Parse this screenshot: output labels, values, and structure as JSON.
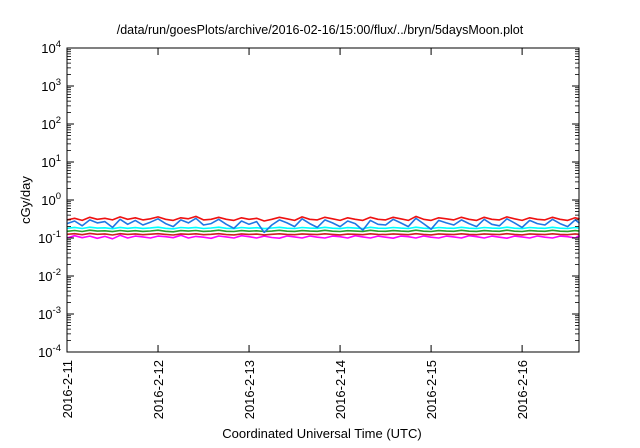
{
  "chart_data": {
    "type": "line",
    "title": "/data/run/goesPlots/archive/2016-02-16/15:00/flux/../bryn/5daysMoon.plot",
    "xlabel": "Coordinated Universal Time (UTC)",
    "ylabel": "cGy/day",
    "y_scale": "log",
    "ylim": [
      0.0001,
      10000
    ],
    "xlim": [
      "2016-02-11 00:00",
      "2016-02-16 15:00"
    ],
    "x_ticks": [
      "2016-2-11",
      "2016-2-12",
      "2016-2-13",
      "2016-2-14",
      "2016-2-15",
      "2016-2-16"
    ],
    "y_ticks": [
      {
        "value": 0.0001,
        "base": "10",
        "exp": "-4"
      },
      {
        "value": 0.001,
        "base": "10",
        "exp": "-3"
      },
      {
        "value": 0.01,
        "base": "10",
        "exp": "-2"
      },
      {
        "value": 0.1,
        "base": "10",
        "exp": "-1"
      },
      {
        "value": 1,
        "base": "10",
        "exp": "0"
      },
      {
        "value": 10,
        "base": "10",
        "exp": "1"
      },
      {
        "value": 100,
        "base": "10",
        "exp": "2"
      },
      {
        "value": 1000,
        "base": "10",
        "exp": "3"
      },
      {
        "value": 10000,
        "base": "10",
        "exp": "4"
      }
    ],
    "grid": false,
    "x_step_hours": 2,
    "series": [
      {
        "color": "#ff00ff",
        "values": [
          0.1,
          0.115,
          0.102,
          0.112,
          0.098,
          0.11,
          0.095,
          0.118,
          0.1,
          0.112,
          0.107,
          0.1,
          0.112,
          0.108,
          0.102,
          0.118,
          0.1,
          0.11,
          0.105,
          0.098,
          0.113,
          0.107,
          0.1,
          0.115,
          0.108,
          0.1,
          0.112,
          0.103,
          0.099,
          0.113,
          0.107,
          0.1,
          0.113,
          0.105,
          0.1,
          0.112,
          0.108,
          0.1,
          0.115,
          0.107,
          0.1,
          0.112,
          0.105,
          0.099,
          0.112,
          0.108,
          0.1,
          0.113,
          0.105,
          0.1,
          0.112,
          0.107,
          0.1,
          0.115,
          0.108,
          0.1,
          0.112,
          0.105,
          0.099,
          0.112,
          0.107,
          0.1,
          0.113,
          0.105,
          0.1,
          0.112,
          0.108,
          0.1,
          0.115,
          0.105
        ]
      },
      {
        "color": "#cc2222",
        "values": [
          0.125,
          0.13,
          0.122,
          0.132,
          0.125,
          0.128,
          0.12,
          0.13,
          0.124,
          0.128,
          0.122,
          0.126,
          0.13,
          0.124,
          0.12,
          0.128,
          0.125,
          0.129,
          0.122,
          0.125,
          0.13,
          0.123,
          0.121,
          0.128,
          0.124,
          0.127,
          0.121,
          0.125,
          0.129,
          0.124,
          0.122,
          0.128,
          0.125,
          0.123,
          0.129,
          0.124,
          0.121,
          0.127,
          0.125,
          0.122,
          0.129,
          0.124,
          0.123,
          0.128,
          0.125,
          0.122,
          0.13,
          0.124,
          0.121,
          0.128,
          0.125,
          0.123,
          0.129,
          0.124,
          0.122,
          0.128,
          0.125,
          0.123,
          0.13,
          0.124,
          0.121,
          0.128,
          0.125,
          0.123,
          0.129,
          0.124,
          0.122,
          0.128,
          0.125,
          0.124
        ]
      },
      {
        "color": "#2ca02c",
        "values": [
          0.15,
          0.158,
          0.148,
          0.16,
          0.152,
          0.155,
          0.147,
          0.158,
          0.15,
          0.156,
          0.149,
          0.153,
          0.16,
          0.15,
          0.146,
          0.157,
          0.152,
          0.158,
          0.149,
          0.152,
          0.16,
          0.15,
          0.148,
          0.157,
          0.151,
          0.155,
          0.148,
          0.152,
          0.159,
          0.151,
          0.149,
          0.157,
          0.152,
          0.15,
          0.159,
          0.151,
          0.148,
          0.156,
          0.152,
          0.149,
          0.159,
          0.151,
          0.15,
          0.157,
          0.152,
          0.149,
          0.16,
          0.151,
          0.148,
          0.157,
          0.152,
          0.15,
          0.159,
          0.151,
          0.149,
          0.157,
          0.152,
          0.15,
          0.16,
          0.151,
          0.148,
          0.157,
          0.152,
          0.15,
          0.159,
          0.151,
          0.149,
          0.157,
          0.152,
          0.151
        ]
      },
      {
        "color": "#00ffff",
        "values": [
          0.18,
          0.19,
          0.178,
          0.192,
          0.182,
          0.186,
          0.176,
          0.19,
          0.18,
          0.188,
          0.179,
          0.184,
          0.192,
          0.18,
          0.175,
          0.189,
          0.182,
          0.19,
          0.178,
          0.183,
          0.192,
          0.18,
          0.177,
          0.189,
          0.181,
          0.187,
          0.177,
          0.183,
          0.191,
          0.181,
          0.178,
          0.189,
          0.182,
          0.18,
          0.191,
          0.181,
          0.177,
          0.188,
          0.182,
          0.178,
          0.191,
          0.181,
          0.18,
          0.189,
          0.182,
          0.178,
          0.192,
          0.181,
          0.177,
          0.189,
          0.182,
          0.18,
          0.191,
          0.181,
          0.178,
          0.189,
          0.182,
          0.18,
          0.192,
          0.181,
          0.177,
          0.189,
          0.182,
          0.18,
          0.191,
          0.181,
          0.178,
          0.189,
          0.182,
          0.181
        ]
      },
      {
        "color": "#1f77e4",
        "values": [
          0.24,
          0.28,
          0.21,
          0.3,
          0.25,
          0.27,
          0.19,
          0.31,
          0.23,
          0.29,
          0.22,
          0.26,
          0.32,
          0.24,
          0.2,
          0.3,
          0.25,
          0.33,
          0.22,
          0.24,
          0.31,
          0.23,
          0.18,
          0.28,
          0.23,
          0.27,
          0.14,
          0.22,
          0.3,
          0.25,
          0.2,
          0.32,
          0.24,
          0.19,
          0.3,
          0.25,
          0.2,
          0.28,
          0.24,
          0.16,
          0.29,
          0.23,
          0.22,
          0.31,
          0.25,
          0.2,
          0.33,
          0.24,
          0.17,
          0.29,
          0.25,
          0.22,
          0.3,
          0.24,
          0.2,
          0.31,
          0.23,
          0.21,
          0.32,
          0.25,
          0.19,
          0.29,
          0.24,
          0.22,
          0.31,
          0.24,
          0.2,
          0.3,
          0.25,
          0.26
        ]
      },
      {
        "color": "#ee1111",
        "values": [
          0.3,
          0.33,
          0.29,
          0.35,
          0.31,
          0.33,
          0.3,
          0.36,
          0.31,
          0.34,
          0.3,
          0.32,
          0.36,
          0.31,
          0.29,
          0.34,
          0.32,
          0.37,
          0.3,
          0.31,
          0.35,
          0.31,
          0.29,
          0.34,
          0.31,
          0.33,
          0.28,
          0.31,
          0.35,
          0.32,
          0.29,
          0.36,
          0.31,
          0.3,
          0.35,
          0.32,
          0.29,
          0.34,
          0.31,
          0.29,
          0.35,
          0.31,
          0.3,
          0.35,
          0.32,
          0.29,
          0.37,
          0.31,
          0.29,
          0.34,
          0.32,
          0.3,
          0.35,
          0.31,
          0.29,
          0.35,
          0.31,
          0.3,
          0.36,
          0.32,
          0.29,
          0.34,
          0.31,
          0.3,
          0.35,
          0.31,
          0.29,
          0.34,
          0.32,
          0.33
        ]
      }
    ]
  }
}
